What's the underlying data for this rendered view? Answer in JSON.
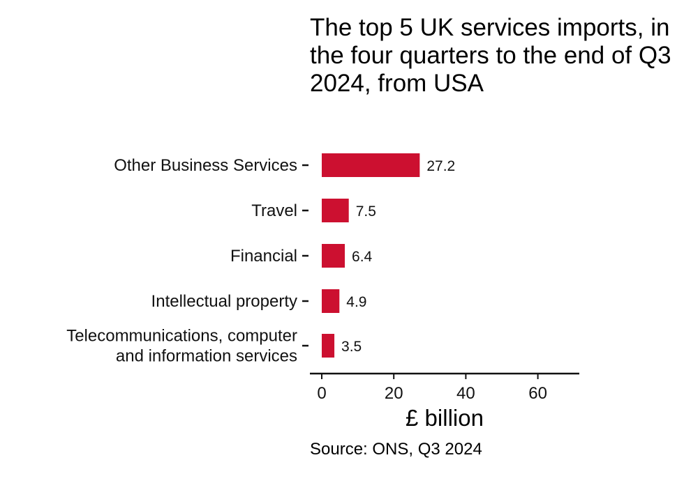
{
  "chart_data": {
    "type": "bar",
    "orientation": "horizontal",
    "title": "The top 5 UK services imports, in the four quarters to the end of Q3 2024, from USA",
    "source": "Source: ONS, Q3 2024",
    "xlabel": "£ billion",
    "ylabel": "",
    "xlim": [
      0,
      70
    ],
    "xticks": [
      0,
      20,
      40,
      60
    ],
    "grid": false,
    "bar_color": "#cc1030",
    "categories": [
      [
        "Other Business Services"
      ],
      [
        "Travel"
      ],
      [
        "Financial"
      ],
      [
        "Intellectual property"
      ],
      [
        "Telecommunications, computer",
        "and information services"
      ]
    ],
    "values": [
      27.2,
      7.5,
      6.4,
      4.9,
      3.5
    ],
    "value_labels": [
      "27.2",
      "7.5",
      "6.4",
      "4.9",
      "3.5"
    ]
  }
}
